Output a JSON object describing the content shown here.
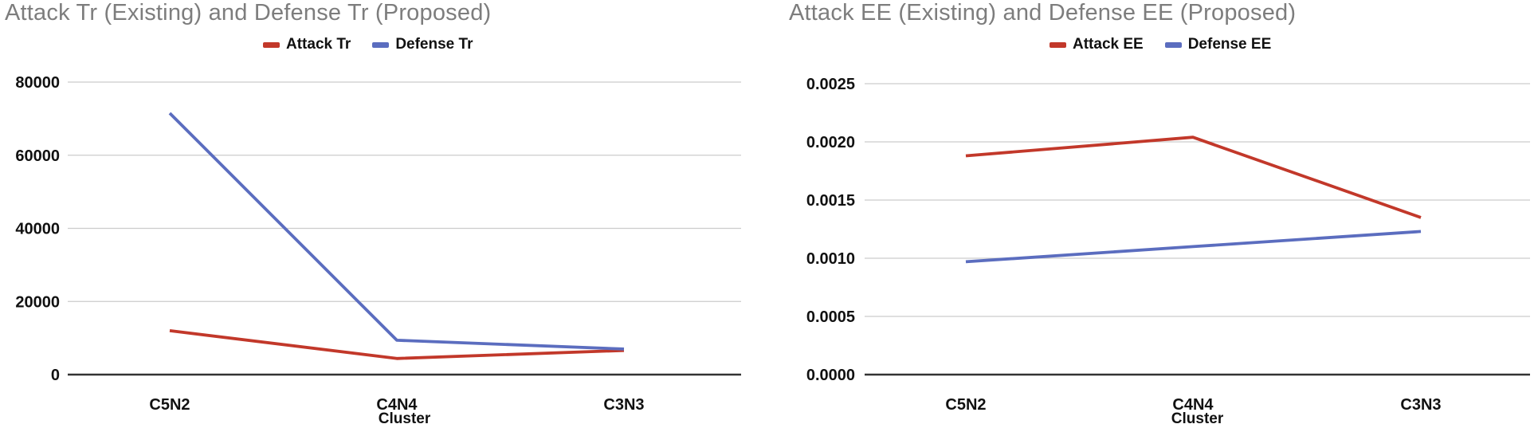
{
  "style": {
    "title_color": "#7d7d7d",
    "tick_text_color": "#111111",
    "gridline_color": "#cccccc",
    "axis_color": "#333333",
    "attack_color": "#c2382a",
    "defense_color": "#5b6dbf"
  },
  "chart_data": [
    {
      "type": "line",
      "title": "Attack Tr (Existing) and Defense Tr (Proposed)",
      "categories": [
        "C5N2",
        "C4N4",
        "C3N3"
      ],
      "series": [
        {
          "name": "Attack Tr",
          "color": "#c2382a",
          "values": [
            12000,
            4400,
            6600
          ]
        },
        {
          "name": "Defense Tr",
          "color": "#5b6dbf",
          "values": [
            71500,
            9400,
            7000
          ]
        }
      ],
      "xlabel": "Cluster",
      "ylabel": "",
      "ylim": [
        0,
        80000
      ],
      "yticks": [
        0,
        20000,
        40000,
        60000,
        80000
      ],
      "ytick_labels": [
        "0",
        "20000",
        "40000",
        "60000",
        "80000"
      ],
      "grid": true,
      "legend_position": "top"
    },
    {
      "type": "line",
      "title": "Attack EE (Existing) and Defense EE (Proposed)",
      "categories": [
        "C5N2",
        "C4N4",
        "C3N3"
      ],
      "series": [
        {
          "name": "Attack EE",
          "color": "#c2382a",
          "values": [
            0.00188,
            0.00204,
            0.00135
          ]
        },
        {
          "name": "Defense EE",
          "color": "#5b6dbf",
          "values": [
            0.00097,
            0.0011,
            0.00123
          ]
        }
      ],
      "xlabel": "Cluster",
      "ylabel": "",
      "ylim": [
        0,
        0.0025
      ],
      "yticks": [
        0,
        0.0005,
        0.001,
        0.0015,
        0.002,
        0.0025
      ],
      "ytick_labels": [
        "0.0000",
        "0.0005",
        "0.0010",
        "0.0015",
        "0.0020",
        "0.0025"
      ],
      "grid": true,
      "legend_position": "top"
    }
  ]
}
